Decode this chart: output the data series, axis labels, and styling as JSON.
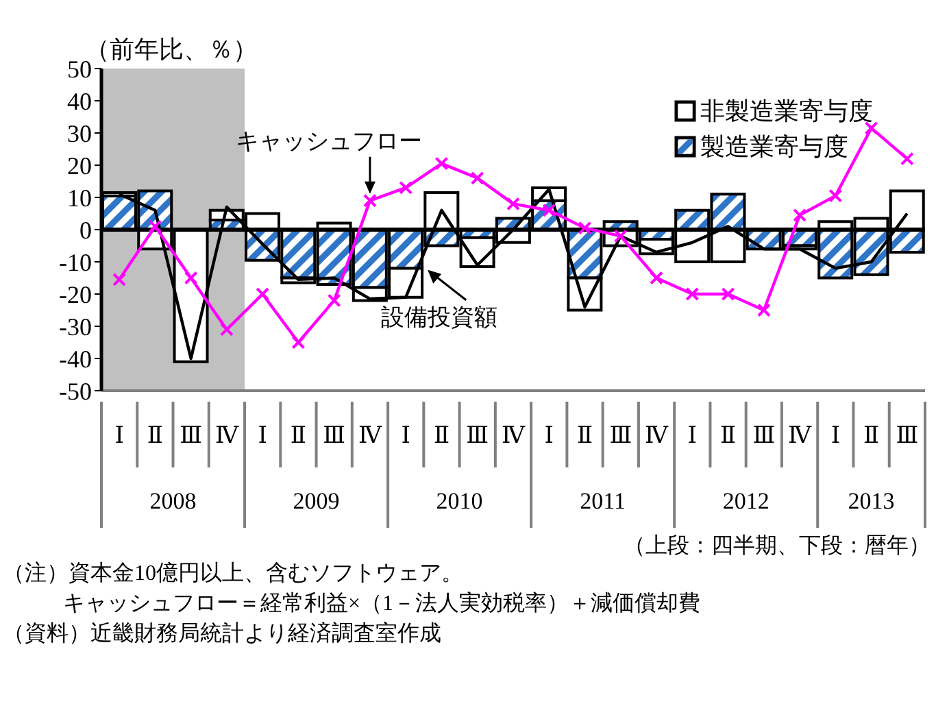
{
  "chart_data": {
    "type": "bar",
    "stacked": true,
    "ylabel": "（前年比、％）",
    "categories": [
      "Ⅰ",
      "Ⅱ",
      "Ⅲ",
      "Ⅳ",
      "Ⅰ",
      "Ⅱ",
      "Ⅲ",
      "Ⅳ",
      "Ⅰ",
      "Ⅱ",
      "Ⅲ",
      "Ⅳ",
      "Ⅰ",
      "Ⅱ",
      "Ⅲ",
      "Ⅳ",
      "Ⅰ",
      "Ⅱ",
      "Ⅲ",
      "Ⅳ",
      "Ⅰ",
      "Ⅱ",
      "Ⅲ"
    ],
    "series": [
      {
        "name": "製造業寄与度",
        "color": "#2f75c8",
        "values": [
          10.5,
          12,
          0,
          3,
          -9.5,
          -15,
          -17,
          -18,
          -12,
          -5,
          -2.5,
          3.5,
          9,
          -15,
          2.5,
          -3,
          6,
          11,
          -6,
          -5,
          -15,
          -14,
          -7
        ]
      },
      {
        "name": "非製造業寄与度",
        "color": "#ffffff",
        "values": [
          1,
          -6,
          -41,
          3,
          5,
          -1.5,
          2,
          -4,
          -9,
          11.5,
          -9,
          -4,
          4,
          -10,
          -5,
          -4.5,
          -10,
          -10,
          0,
          -1,
          2.5,
          3.5,
          12
        ]
      },
      {
        "name": "設備投資額",
        "type": "line",
        "color": "#000000",
        "marker": "none",
        "values": [
          11,
          6,
          -40,
          7,
          -4.5,
          -15.5,
          -15,
          -21.5,
          -21,
          6,
          -11,
          0,
          12.5,
          -24,
          -2,
          -7,
          -4,
          1,
          -6,
          -6,
          -12,
          -10,
          5
        ]
      },
      {
        "name": "キャッシュフロー",
        "type": "line",
        "color": "#ff00ff",
        "marker": "cross",
        "values": [
          -15.5,
          1,
          -15,
          -31,
          -20,
          -35,
          -22,
          9,
          13,
          20.5,
          16,
          8,
          6,
          0.5,
          -2,
          -15,
          -20,
          -20,
          -25,
          4.5,
          10.5,
          31.5,
          22
        ]
      }
    ],
    "ylim": [
      -50,
      50
    ],
    "yticks": [
      -50,
      -40,
      -30,
      -20,
      -10,
      0,
      10,
      20,
      30,
      40,
      50
    ],
    "bands": [
      {
        "axis": "x",
        "from": "Ⅰ",
        "to": "Ⅳ",
        "color": "#c0c0c0"
      }
    ],
    "ref_lines": [
      {
        "axis": "y",
        "value": 0,
        "color": "#000000"
      }
    ],
    "legend": "top right",
    "grid": false,
    "annotations": [
      "2008",
      "2009",
      "2010",
      "2011",
      "2012",
      "2013",
      "（上段：四半期、下段：暦年）",
      "（注）資本金10億円以上、含むソフトウェア。",
      "キャッシュフロー＝経常利益×（1－法人実効税率）＋減価償却費",
      "（資料）近畿財務局統計より経済調査室作成"
    ]
  }
}
